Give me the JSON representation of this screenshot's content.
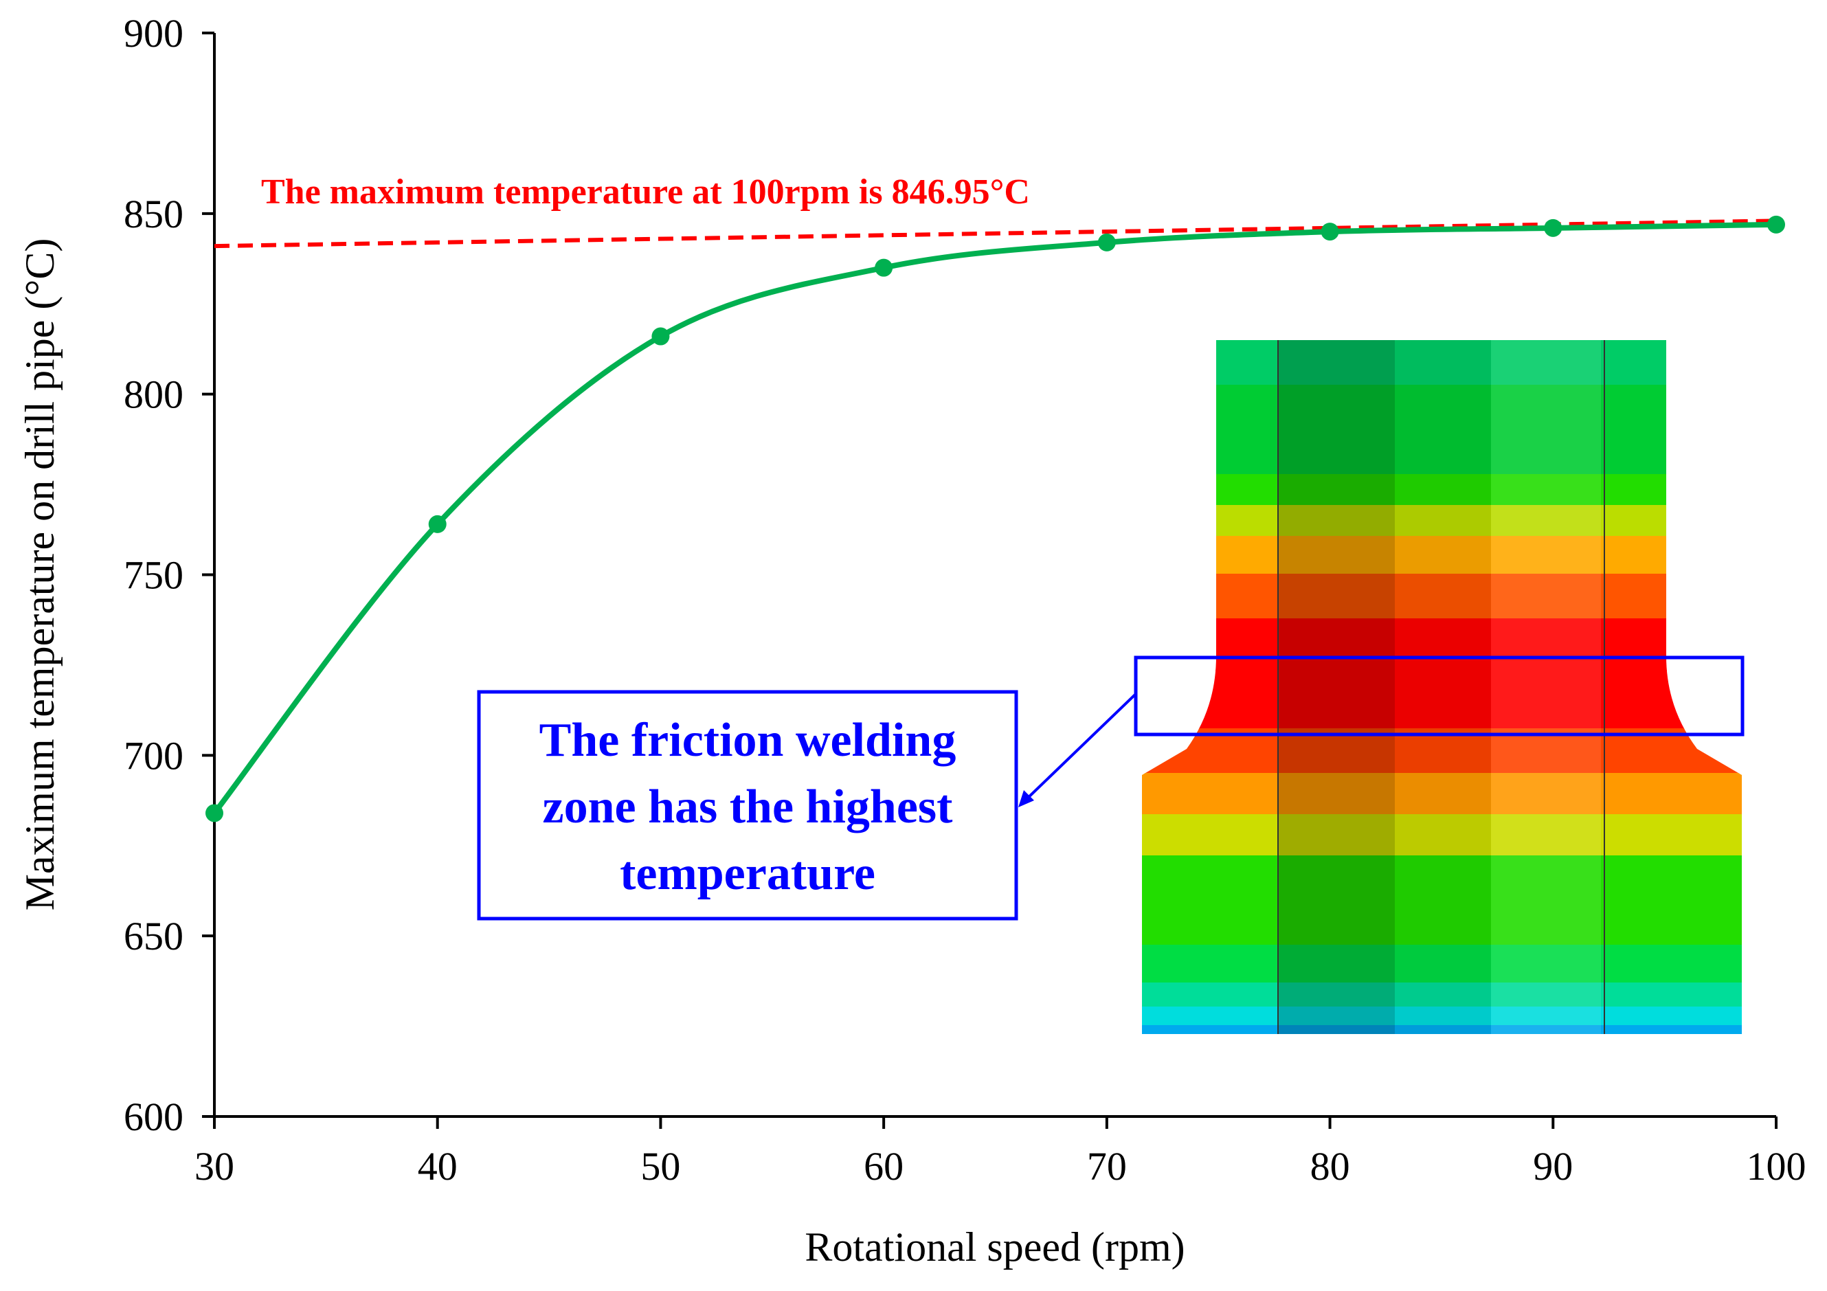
{
  "chart_data": {
    "type": "line",
    "title": "",
    "xlabel": "Rotational speed (rpm)",
    "ylabel": "Maximum temperature on drill pipe (°C)",
    "xlim": [
      30,
      100
    ],
    "ylim": [
      600,
      900
    ],
    "xticks": [
      30,
      40,
      50,
      60,
      70,
      80,
      90,
      100
    ],
    "yticks": [
      600,
      650,
      700,
      750,
      800,
      850,
      900
    ],
    "grid": false,
    "series": [
      {
        "name": "Maximum temperature",
        "color": "#00b050",
        "x": [
          30,
          40,
          50,
          60,
          70,
          80,
          90,
          100
        ],
        "y": [
          684,
          764,
          816,
          835,
          842,
          845,
          846,
          846.95
        ]
      }
    ],
    "reference_line": {
      "color": "#ff0000",
      "style": "dashed",
      "x": [
        30,
        100
      ],
      "y": [
        841,
        848
      ],
      "label": "The maximum temperature at 100rpm is 846.95°C"
    },
    "annotation": {
      "lines": [
        "The friction welding",
        "zone has the highest",
        "temperature"
      ],
      "color": "#0000ff"
    },
    "inset": {
      "description_name": "temperature-contour-inset",
      "band_colors": [
        "#00cc66",
        "#00cc33",
        "#22dd00",
        "#bbdd00",
        "#ffaa00",
        "#ff5500",
        "#ff0000",
        "#ff0000",
        "#ff4400",
        "#ff9900",
        "#ccdd00",
        "#22dd00",
        "#00dd44",
        "#00dd99",
        "#00dddd",
        "#00aaee"
      ]
    }
  }
}
